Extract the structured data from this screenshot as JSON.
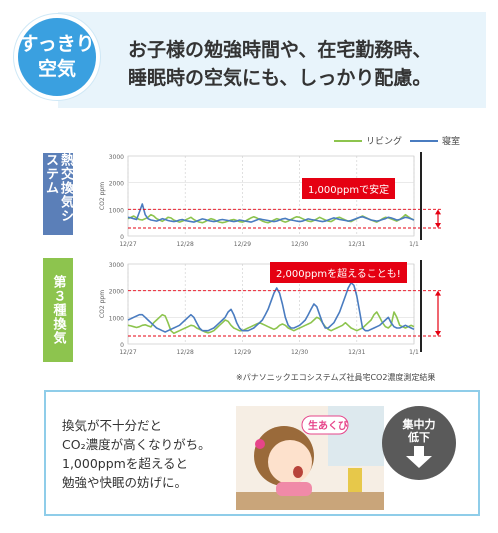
{
  "header": {
    "badge_line1": "すっきり",
    "badge_line2": "空気",
    "headline_line1": "お子様の勉強時間や、在宅勤務時、",
    "headline_line2": "睡眠時の空気にも、しっかり配慮。"
  },
  "legend": {
    "living": "リビング",
    "bedroom": "寝室"
  },
  "colors": {
    "living": "#8dc44e",
    "bedroom": "#4a7cc0",
    "alert": "#e50012",
    "badge": "#3aa0e0",
    "panel_border": "#8fcde9"
  },
  "side_labels": {
    "system_a": "熱交換気システム",
    "system_b": "第３種換気"
  },
  "callouts": {
    "a": "1,000ppmで安定",
    "b": "2,000ppmを超えることも!"
  },
  "source_note": "※パナソニックエコシステムズ社員宅CO2濃度測定結果",
  "panel": {
    "line1": "換気が不十分だと",
    "line2": "CO₂濃度が高くなりがち。",
    "line3": "1,000ppmを超えると",
    "line4": "勉強や快眠の妨げに。",
    "illus_tag": "生あくび",
    "circle_line1": "集中力",
    "circle_line2": "低下"
  },
  "chart_data": [
    {
      "type": "line",
      "title": "",
      "xlabel": "",
      "ylabel": "CO2 ppm",
      "ylim": [
        0,
        3000
      ],
      "yticks": [
        0,
        1000,
        2000,
        3000
      ],
      "xticks": [
        "12/27",
        "12/28",
        "12/29",
        "12/30",
        "12/31",
        "1/1"
      ],
      "series": [
        {
          "name": "リビング",
          "x": [
            0,
            0.05,
            0.1,
            0.15,
            0.2,
            0.25,
            0.3,
            0.35,
            0.4,
            0.45,
            0.5,
            0.55,
            0.6,
            0.65,
            0.7,
            0.75,
            0.8,
            0.85,
            0.9,
            0.95,
            1.0,
            1.05,
            1.1,
            1.15,
            1.2,
            1.25,
            1.3,
            1.35,
            1.4,
            1.45,
            1.5,
            1.55,
            1.6,
            1.65,
            1.7,
            1.75,
            1.8,
            1.85,
            1.9,
            1.95,
            2.0,
            2.05,
            2.1,
            2.15,
            2.2,
            2.25,
            2.3,
            2.35,
            2.4,
            2.45,
            2.5,
            2.55,
            2.6,
            2.65,
            2.7,
            2.75,
            2.8,
            2.85,
            2.9,
            2.95,
            3.0,
            3.05,
            3.1,
            3.15,
            3.2,
            3.25,
            3.3,
            3.35,
            3.4,
            3.45,
            3.5,
            3.55,
            3.6,
            3.65,
            3.7,
            3.75,
            3.8,
            3.85,
            3.9,
            3.95,
            4.0,
            4.05,
            4.1,
            4.15,
            4.2,
            4.25,
            4.3,
            4.35,
            4.4,
            4.45,
            4.5,
            4.55,
            4.6,
            4.65,
            4.7,
            4.75,
            4.8,
            4.85,
            4.9,
            4.95,
            5.0
          ],
          "y": [
            650,
            700,
            750,
            680,
            620,
            600,
            650,
            700,
            800,
            750,
            650,
            600,
            550,
            620,
            700,
            680,
            600,
            560,
            520,
            560,
            600,
            650,
            700,
            620,
            560,
            520,
            500,
            540,
            600,
            650,
            620,
            560,
            520,
            500,
            520,
            560,
            600,
            620,
            580,
            540,
            520,
            560,
            620,
            680,
            720,
            680,
            620,
            560,
            520,
            500,
            540,
            600,
            650,
            620,
            560,
            520,
            560,
            620,
            680,
            720,
            700,
            650,
            600,
            560,
            540,
            580,
            640,
            700,
            650,
            600,
            560,
            540,
            600,
            680,
            700,
            650,
            600,
            560,
            540,
            600,
            650,
            700,
            750,
            700,
            650,
            600,
            560,
            520,
            580,
            650,
            700,
            680,
            640,
            600,
            560,
            620,
            700,
            800,
            720,
            650,
            600
          ]
        },
        {
          "name": "寝室",
          "x": [
            0,
            0.05,
            0.1,
            0.15,
            0.2,
            0.25,
            0.3,
            0.35,
            0.4,
            0.45,
            0.5,
            0.55,
            0.6,
            0.65,
            0.7,
            0.75,
            0.8,
            0.85,
            0.9,
            0.95,
            1.0,
            1.05,
            1.1,
            1.15,
            1.2,
            1.25,
            1.3,
            1.35,
            1.4,
            1.45,
            1.5,
            1.55,
            1.6,
            1.65,
            1.7,
            1.75,
            1.8,
            1.85,
            1.9,
            1.95,
            2.0,
            2.05,
            2.1,
            2.15,
            2.2,
            2.25,
            2.3,
            2.35,
            2.4,
            2.45,
            2.5,
            2.55,
            2.6,
            2.65,
            2.7,
            2.75,
            2.8,
            2.85,
            2.9,
            2.95,
            3.0,
            3.05,
            3.1,
            3.15,
            3.2,
            3.25,
            3.3,
            3.35,
            3.4,
            3.45,
            3.5,
            3.55,
            3.6,
            3.65,
            3.7,
            3.75,
            3.8,
            3.85,
            3.9,
            3.95,
            4.0,
            4.05,
            4.1,
            4.15,
            4.2,
            4.25,
            4.3,
            4.35,
            4.4,
            4.45,
            4.5,
            4.55,
            4.6,
            4.65,
            4.7,
            4.75,
            4.8,
            4.85,
            4.9,
            4.95,
            5.0
          ],
          "y": [
            700,
            680,
            650,
            620,
            900,
            1200,
            800,
            650,
            600,
            580,
            560,
            600,
            650,
            620,
            580,
            560,
            540,
            560,
            600,
            620,
            580,
            560,
            540,
            520,
            560,
            600,
            640,
            620,
            580,
            560,
            540,
            560,
            600,
            620,
            600,
            580,
            560,
            540,
            560,
            600,
            580,
            560,
            540,
            520,
            560,
            600,
            640,
            620,
            600,
            580,
            560,
            540,
            560,
            600,
            640,
            660,
            620,
            600,
            580,
            560,
            540,
            560,
            600,
            640,
            620,
            600,
            580,
            560,
            540,
            560,
            600,
            640,
            680,
            650,
            620,
            600,
            580,
            560,
            580,
            620,
            660,
            700,
            720,
            680,
            640,
            600,
            580,
            560,
            580,
            620,
            650,
            700,
            680,
            640,
            600,
            620,
            660,
            700,
            680,
            640,
            600
          ]
        }
      ],
      "reference_lines": [
        1000,
        300
      ]
    },
    {
      "type": "line",
      "title": "",
      "xlabel": "",
      "ylabel": "CO2 ppm",
      "ylim": [
        0,
        3000
      ],
      "yticks": [
        0,
        1000,
        2000,
        3000
      ],
      "xticks": [
        "12/27",
        "12/28",
        "12/29",
        "12/30",
        "12/31",
        "1/1"
      ],
      "series": [
        {
          "name": "リビング",
          "x": [
            0,
            0.05,
            0.1,
            0.15,
            0.2,
            0.25,
            0.3,
            0.35,
            0.4,
            0.45,
            0.5,
            0.55,
            0.6,
            0.65,
            0.7,
            0.75,
            0.8,
            0.85,
            0.9,
            0.95,
            1.0,
            1.05,
            1.1,
            1.15,
            1.2,
            1.25,
            1.3,
            1.35,
            1.4,
            1.45,
            1.5,
            1.55,
            1.6,
            1.65,
            1.7,
            1.75,
            1.8,
            1.85,
            1.9,
            1.95,
            2.0,
            2.05,
            2.1,
            2.15,
            2.2,
            2.25,
            2.3,
            2.35,
            2.4,
            2.45,
            2.5,
            2.55,
            2.6,
            2.65,
            2.7,
            2.75,
            2.8,
            2.85,
            2.9,
            2.95,
            3.0,
            3.05,
            3.1,
            3.15,
            3.2,
            3.25,
            3.3,
            3.35,
            3.4,
            3.45,
            3.5,
            3.55,
            3.6,
            3.65,
            3.7,
            3.75,
            3.8,
            3.85,
            3.9,
            3.95,
            4.0,
            4.05,
            4.1,
            4.15,
            4.2,
            4.25,
            4.3,
            4.35,
            4.4,
            4.45,
            4.5,
            4.55,
            4.6,
            4.65,
            4.7,
            4.75,
            4.8,
            4.85,
            4.9,
            4.95,
            5.0
          ],
          "y": [
            700,
            680,
            650,
            620,
            650,
            700,
            720,
            680,
            640,
            800,
            900,
            1000,
            1100,
            1050,
            800,
            500,
            400,
            450,
            500,
            550,
            600,
            650,
            700,
            680,
            600,
            550,
            500,
            450,
            420,
            450,
            500,
            600,
            700,
            800,
            900,
            850,
            700,
            600,
            550,
            500,
            500,
            550,
            600,
            650,
            700,
            750,
            800,
            750,
            700,
            650,
            600,
            550,
            600,
            700,
            750,
            700,
            600,
            550,
            500,
            550,
            600,
            650,
            700,
            750,
            800,
            900,
            1000,
            950,
            800,
            650,
            550,
            500,
            550,
            600,
            650,
            700,
            800,
            700,
            600,
            550,
            500,
            550,
            600,
            700,
            800,
            900,
            1100,
            1200,
            1000,
            800,
            650,
            600,
            700,
            1200,
            1000,
            700,
            650,
            600,
            650,
            700,
            650
          ]
        },
        {
          "name": "寝室",
          "x": [
            0,
            0.05,
            0.1,
            0.15,
            0.2,
            0.25,
            0.3,
            0.35,
            0.4,
            0.45,
            0.5,
            0.55,
            0.6,
            0.65,
            0.7,
            0.75,
            0.8,
            0.85,
            0.9,
            0.95,
            1.0,
            1.05,
            1.1,
            1.15,
            1.2,
            1.25,
            1.3,
            1.35,
            1.4,
            1.45,
            1.5,
            1.55,
            1.6,
            1.65,
            1.7,
            1.75,
            1.8,
            1.85,
            1.9,
            1.95,
            2.0,
            2.05,
            2.1,
            2.15,
            2.2,
            2.25,
            2.3,
            2.35,
            2.4,
            2.45,
            2.5,
            2.55,
            2.6,
            2.65,
            2.7,
            2.75,
            2.8,
            2.85,
            2.9,
            2.95,
            3.0,
            3.05,
            3.1,
            3.15,
            3.2,
            3.25,
            3.3,
            3.35,
            3.4,
            3.45,
            3.5,
            3.55,
            3.6,
            3.65,
            3.7,
            3.75,
            3.8,
            3.85,
            3.9,
            3.95,
            4.0,
            4.05,
            4.1,
            4.15,
            4.2,
            4.25,
            4.3,
            4.35,
            4.4,
            4.45,
            4.5,
            4.55,
            4.6,
            4.65,
            4.7,
            4.75,
            4.8,
            4.85,
            4.9,
            4.95,
            5.0
          ],
          "y": [
            900,
            950,
            1000,
            1050,
            1100,
            1100,
            1000,
            900,
            800,
            700,
            600,
            550,
            500,
            450,
            500,
            550,
            600,
            650,
            700,
            800,
            900,
            1000,
            1100,
            1000,
            800,
            600,
            500,
            500,
            500,
            550,
            600,
            700,
            800,
            900,
            1000,
            1200,
            1300,
            1100,
            800,
            600,
            500,
            500,
            500,
            550,
            600,
            700,
            800,
            900,
            1100,
            1300,
            1600,
            1900,
            2100,
            1900,
            1500,
            1000,
            700,
            600,
            600,
            650,
            700,
            800,
            900,
            1100,
            1300,
            1500,
            1400,
            1100,
            800,
            600,
            600,
            700,
            800,
            1000,
            1200,
            1500,
            1800,
            2100,
            2300,
            2200,
            1800,
            1200,
            600,
            500,
            500,
            550,
            600,
            650,
            700,
            800,
            900,
            1000,
            800,
            650,
            600,
            600,
            650,
            700,
            650,
            600,
            550
          ]
        }
      ],
      "reference_lines": [
        2000,
        300
      ]
    }
  ]
}
